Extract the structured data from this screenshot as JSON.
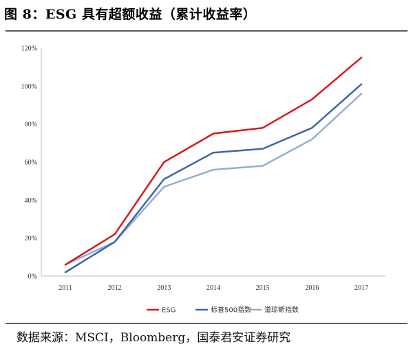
{
  "figure": {
    "title": "图 8：ESG 具有超额收益（累计收益率）",
    "source": "数据来源：MSCI，Bloomberg，国泰君安证券研究"
  },
  "chart_data": {
    "type": "line",
    "title": "图 8：ESG 具有超额收益（累计收益率）",
    "x": [
      "2011",
      "2012",
      "2013",
      "2014",
      "2015",
      "2016",
      "2017"
    ],
    "ylim": [
      0,
      120
    ],
    "yticks": [
      "0%",
      "20%",
      "40%",
      "60%",
      "80%",
      "100%",
      "120%"
    ],
    "ytick_values": [
      0,
      20,
      40,
      60,
      80,
      100,
      120
    ],
    "xlabel": "",
    "ylabel": "",
    "grid": false,
    "legend_position": "bottom",
    "series": [
      {
        "name": "ESG",
        "color": "#d7191c",
        "values": [
          6,
          22,
          60,
          75,
          78,
          93,
          115
        ]
      },
      {
        "name": "标普500指数",
        "color": "#3d66a8",
        "values": [
          2,
          18,
          51,
          65,
          67,
          78,
          101
        ]
      },
      {
        "name": "道琼斯指数",
        "color": "#95add3",
        "values": [
          6,
          18,
          47,
          56,
          58,
          72,
          96
        ]
      }
    ]
  }
}
